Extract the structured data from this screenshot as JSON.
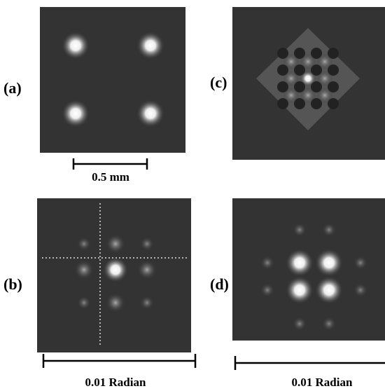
{
  "panels": [
    {
      "label": "(a)"
    },
    {
      "label": "(b)"
    },
    {
      "label": "(c)"
    },
    {
      "label": "(d)"
    }
  ],
  "scale_bars": [
    {
      "label": "0.5 mm"
    },
    {
      "label": "0.01 Radian"
    },
    {
      "label": "0.01 Radian"
    }
  ]
}
